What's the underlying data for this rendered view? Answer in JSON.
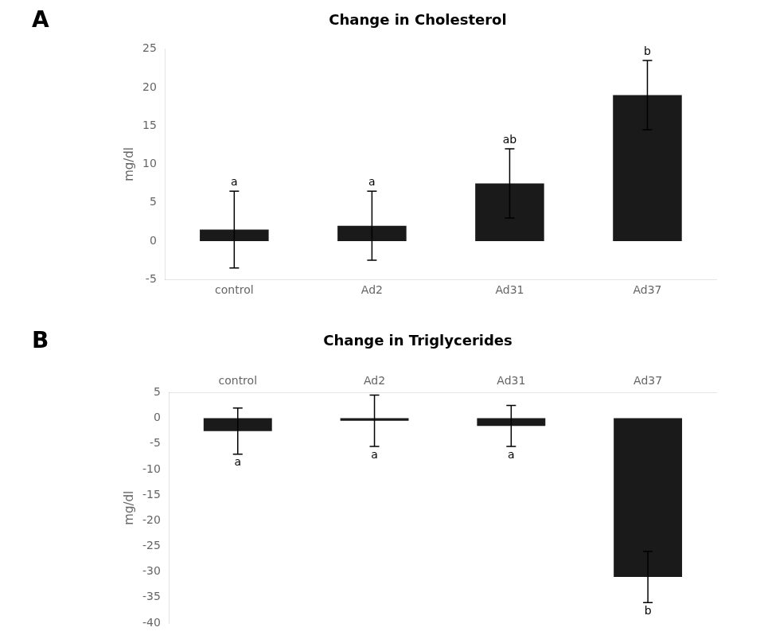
{
  "chart_data": [
    {
      "type": "bar",
      "panel_label": "A",
      "title": "Change in Cholesterol",
      "categories": [
        "control",
        "Ad2",
        "Ad31",
        "Ad37"
      ],
      "values": [
        1.5,
        2.0,
        7.5,
        19.0
      ],
      "errors": [
        5.0,
        4.5,
        4.5,
        4.5
      ],
      "ylabel": "mg/dl",
      "ylim": [
        -5,
        25
      ],
      "yticks": [
        -5,
        0,
        5,
        10,
        15,
        20,
        25
      ],
      "color": "#1a1a1a",
      "annotations": [
        "a",
        "a",
        "ab",
        "b"
      ],
      "grid": false
    },
    {
      "type": "bar",
      "panel_label": "B",
      "title": "Change in Triglycerides",
      "categories": [
        "control",
        "Ad2",
        "Ad31",
        "Ad37"
      ],
      "values": [
        -2.5,
        -0.5,
        -1.5,
        -31.0
      ],
      "errors": [
        4.5,
        5.0,
        4.0,
        5.0
      ],
      "ylabel": "mg/dl",
      "ylim": [
        -40,
        5
      ],
      "yticks": [
        5,
        0,
        -5,
        -10,
        -15,
        -20,
        -25,
        -30,
        -35,
        -40
      ],
      "color": "#1a1a1a",
      "annotations": [
        "a",
        "a",
        "a",
        "b"
      ],
      "grid": false
    }
  ]
}
